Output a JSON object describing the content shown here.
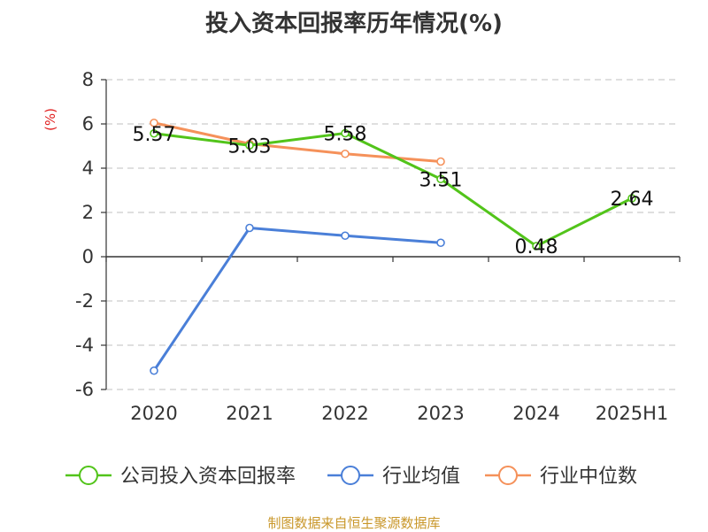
{
  "chart_data": {
    "type": "line",
    "title": "投入资本回报率历年情况(%)",
    "unit_label": "(%)",
    "categories": [
      "2020",
      "2021",
      "2022",
      "2023",
      "2024",
      "2025H1"
    ],
    "ylim": [
      -6,
      8
    ],
    "yticks": [
      "8",
      "6",
      "4",
      "2",
      "0",
      "-2",
      "-4",
      "-6"
    ],
    "grid": true,
    "legend_position": "bottom",
    "series": [
      {
        "name": "公司投入资本回报率",
        "color": "#52c41a",
        "values": [
          5.57,
          5.03,
          5.58,
          3.51,
          0.48,
          2.64
        ],
        "labels": [
          "5.57",
          "5.03",
          "5.58",
          "3.51",
          "0.48",
          "2.64"
        ]
      },
      {
        "name": "行业均值",
        "color": "#4a7fd8",
        "values": [
          -5.15,
          1.3,
          0.95,
          0.63,
          null,
          null
        ]
      },
      {
        "name": "行业中位数",
        "color": "#f5915a",
        "values": [
          6.05,
          5.1,
          4.65,
          4.3,
          null,
          null
        ]
      }
    ]
  },
  "footer": {
    "source": "制图数据来自恒生聚源数据库"
  }
}
